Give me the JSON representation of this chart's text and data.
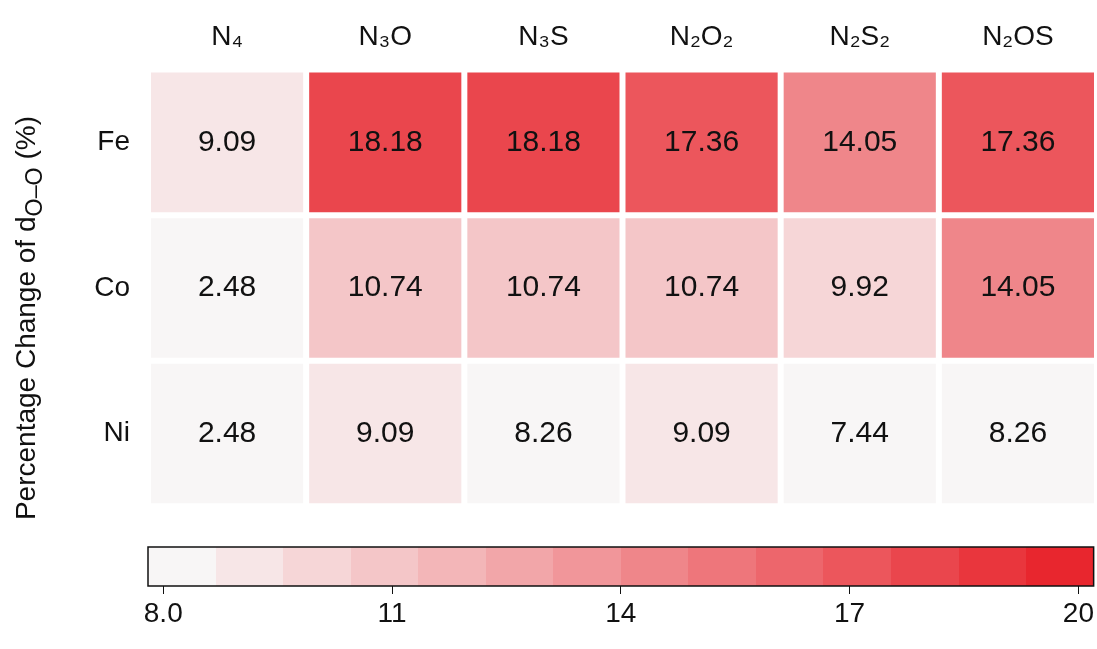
{
  "chart_data": {
    "type": "heatmap",
    "ylabel": "Percentage Change of d$_{O–O}$ (%)",
    "categories": [
      "N₄",
      "N₃O",
      "N₃S",
      "N₂O₂",
      "N₂S₂",
      "N₂OS"
    ],
    "y_categories": [
      "Fe",
      "Co",
      "Ni"
    ],
    "cells": [
      [
        9.09,
        18.18,
        18.18,
        17.36,
        14.05,
        17.36
      ],
      [
        2.48,
        10.74,
        10.74,
        10.74,
        9.92,
        14.05
      ],
      [
        2.48,
        9.09,
        8.26,
        9.09,
        7.44,
        8.26
      ]
    ],
    "data_labels": true,
    "clim": [
      7.8,
      20.2
    ],
    "cticks": [
      {
        "value": 8,
        "label": "8.0"
      },
      11,
      14,
      17,
      20
    ]
  }
}
